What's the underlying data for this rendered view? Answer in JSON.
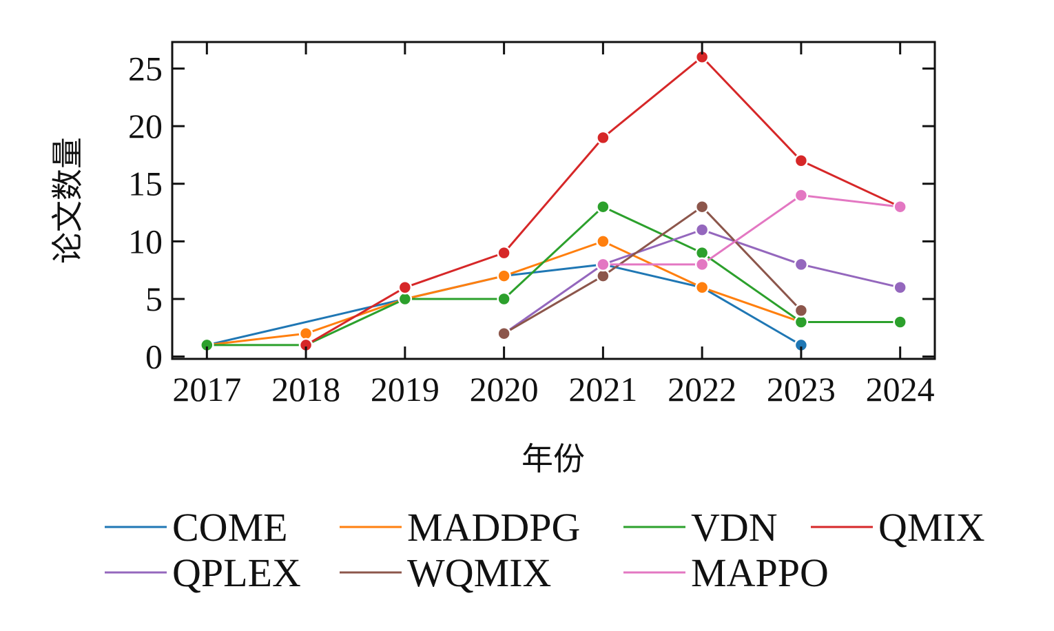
{
  "chart_data": {
    "type": "line",
    "title": "",
    "xlabel": "年份",
    "ylabel": "论文数量",
    "x": [
      2017,
      2018,
      2019,
      2020,
      2021,
      2022,
      2023,
      2024
    ],
    "x_tick_labels": [
      "2017",
      "2018",
      "2019",
      "2020",
      "2021",
      "2022",
      "2023",
      "2024"
    ],
    "y_ticks": [
      0,
      5,
      10,
      15,
      20,
      25
    ],
    "y_tick_labels": [
      "0",
      "5",
      "10",
      "15",
      "20",
      "25"
    ],
    "ylim": [
      -0.2,
      27.3
    ],
    "xlim": [
      2016.65,
      2024.35
    ],
    "grid": false,
    "ticks_direction": "in",
    "mirrored_ticks": true,
    "legend_position": "bottom",
    "legend_columns": 4,
    "series": [
      {
        "name": "COME",
        "color": "#1f77b4",
        "values": [
          1,
          null,
          5,
          7,
          8,
          6,
          1,
          null
        ],
        "connect_gaps": true
      },
      {
        "name": "MADDPG",
        "color": "#ff7f0e",
        "values": [
          1,
          2,
          5,
          7,
          10,
          6,
          3,
          null
        ]
      },
      {
        "name": "VDN",
        "color": "#2ca02c",
        "values": [
          1,
          1,
          5,
          5,
          13,
          9,
          3,
          3
        ]
      },
      {
        "name": "QMIX",
        "color": "#d62728",
        "values": [
          null,
          1,
          6,
          9,
          19,
          26,
          17,
          13
        ]
      },
      {
        "name": "QPLEX",
        "color": "#9467bd",
        "values": [
          null,
          null,
          null,
          2,
          8,
          11,
          8,
          6
        ]
      },
      {
        "name": "WQMIX",
        "color": "#8c564b",
        "values": [
          null,
          null,
          null,
          2,
          7,
          13,
          4,
          null
        ]
      },
      {
        "name": "MAPPO",
        "color": "#e377c2",
        "values": [
          null,
          null,
          null,
          null,
          8,
          8,
          14,
          13
        ]
      }
    ]
  }
}
